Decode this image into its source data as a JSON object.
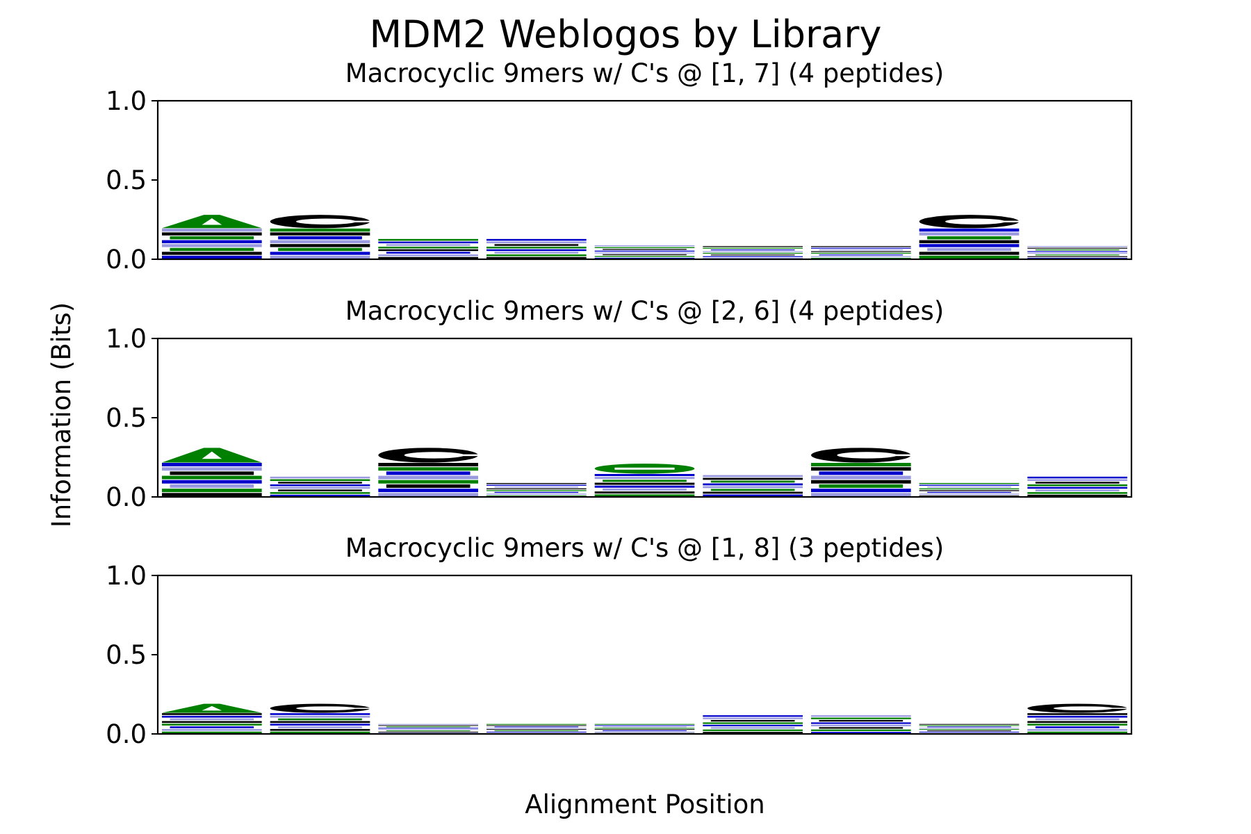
{
  "chart_data": {
    "type": "sequence-logo",
    "title": "MDM2 Weblogos by Library",
    "xlabel": "Alignment Position",
    "ylabel": "Information (Bits)",
    "ylim": [
      0,
      1.0
    ],
    "yticks": [
      "0.0",
      "0.5",
      "1.0"
    ],
    "positions": 9,
    "colors": {
      "hydrophobic": "#000000",
      "polar": "#008000",
      "charged": "#0000cc",
      "light": "#9a9ae0"
    },
    "panels": [
      {
        "subtitle": "Macrocyclic 9mers w/ C's @ [1, 7] (4 peptides)",
        "information": [
          0.28,
          0.28,
          0.13,
          0.13,
          0.09,
          0.085,
          0.085,
          0.28,
          0.085
        ],
        "top_letter": [
          "A",
          "C",
          "",
          "",
          "",
          "",
          "",
          "C",
          ""
        ]
      },
      {
        "subtitle": "Macrocyclic 9mers w/ C's @ [2, 6] (4 peptides)",
        "information": [
          0.31,
          0.13,
          0.31,
          0.09,
          0.21,
          0.14,
          0.31,
          0.09,
          0.13
        ],
        "top_letter": [
          "A",
          "",
          "C",
          "",
          "S",
          "",
          "C",
          "",
          ""
        ]
      },
      {
        "subtitle": "Macrocyclic 9mers w/ C's @ [1, 8] (3 peptides)",
        "information": [
          0.19,
          0.19,
          0.065,
          0.065,
          0.065,
          0.12,
          0.12,
          0.065,
          0.19
        ],
        "top_letter": [
          "A",
          "C",
          "",
          "",
          "",
          "",
          "",
          "",
          "C"
        ]
      }
    ]
  }
}
